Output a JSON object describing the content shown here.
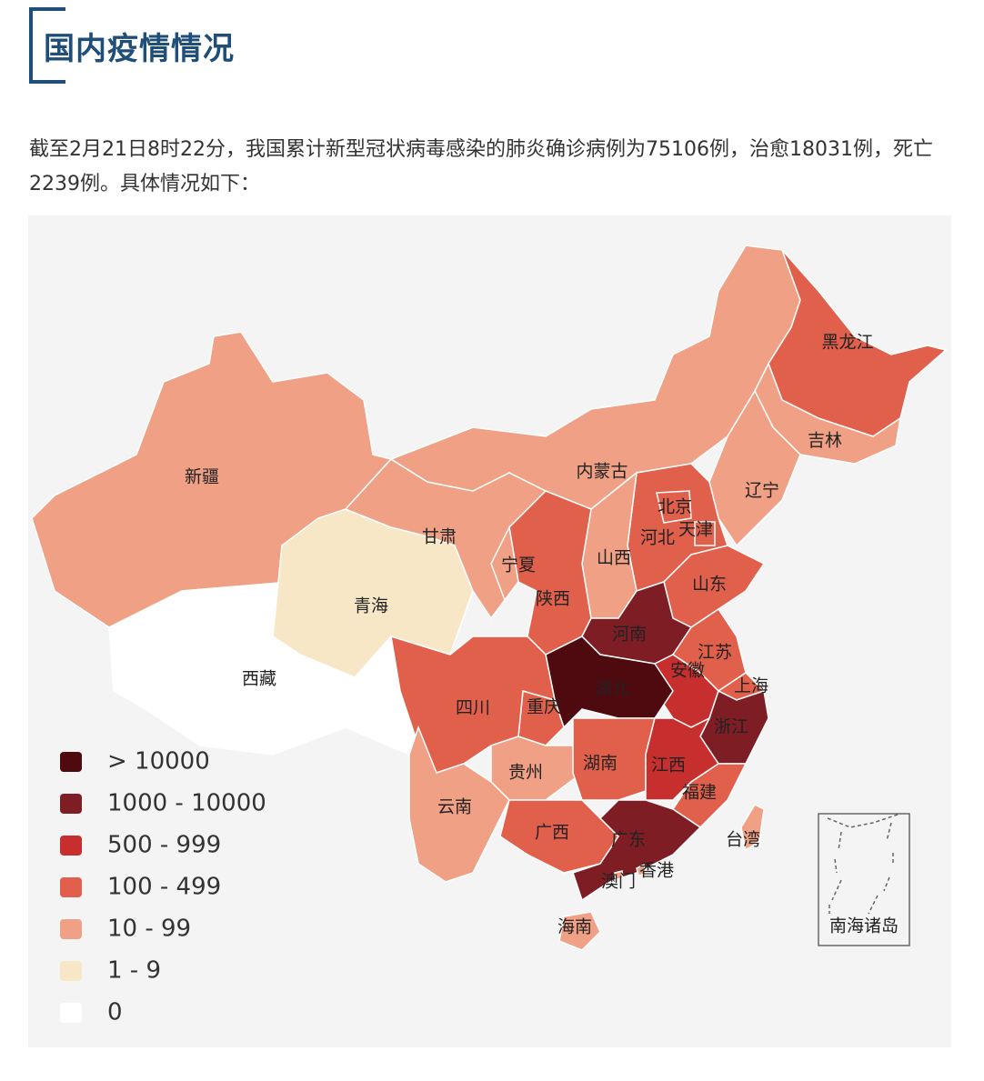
{
  "header": {
    "title": "国内疫情情况"
  },
  "summary": "截至2月21日8时22分，我国累计新型冠状病毒感染的肺炎确诊病例为75106例，治愈18031例，死亡2239例。具体情况如下：",
  "map": {
    "regions": [
      {
        "name": "新疆",
        "level": 4
      },
      {
        "name": "西藏",
        "level": 6
      },
      {
        "name": "青海",
        "level": 5
      },
      {
        "name": "甘肃",
        "level": 4
      },
      {
        "name": "内蒙古",
        "level": 4
      },
      {
        "name": "黑龙江",
        "level": 3
      },
      {
        "name": "吉林",
        "level": 4
      },
      {
        "name": "辽宁",
        "level": 4
      },
      {
        "name": "河北",
        "level": 3
      },
      {
        "name": "北京",
        "level": 3
      },
      {
        "name": "天津",
        "level": 3
      },
      {
        "name": "山西",
        "level": 4
      },
      {
        "name": "陕西",
        "level": 3
      },
      {
        "name": "宁夏",
        "level": 4
      },
      {
        "name": "山东",
        "level": 3
      },
      {
        "name": "河南",
        "level": 1
      },
      {
        "name": "江苏",
        "level": 3
      },
      {
        "name": "安徽",
        "level": 2
      },
      {
        "name": "上海",
        "level": 3
      },
      {
        "name": "浙江",
        "level": 1
      },
      {
        "name": "湖北",
        "level": 0
      },
      {
        "name": "重庆",
        "level": 3
      },
      {
        "name": "四川",
        "level": 3
      },
      {
        "name": "贵州",
        "level": 4
      },
      {
        "name": "云南",
        "level": 4
      },
      {
        "name": "湖南",
        "level": 3
      },
      {
        "name": "江西",
        "level": 2
      },
      {
        "name": "福建",
        "level": 3
      },
      {
        "name": "广西",
        "level": 3
      },
      {
        "name": "广东",
        "level": 1
      },
      {
        "name": "海南",
        "level": 4
      },
      {
        "name": "台湾",
        "level": 4
      },
      {
        "name": "香港",
        "level": 4
      },
      {
        "name": "澳门",
        "level": 4
      }
    ],
    "inset_label": "南海诸岛",
    "legend": [
      {
        "label": "> 10000",
        "color": "#4f0a10"
      },
      {
        "label": "1000 - 10000",
        "color": "#7f1d24"
      },
      {
        "label": "500 - 999",
        "color": "#c62f2d"
      },
      {
        "label": "100 - 499",
        "color": "#e0604c"
      },
      {
        "label": "10 - 99",
        "color": "#f0a084"
      },
      {
        "label": "1 - 9",
        "color": "#f8e7c6"
      },
      {
        "label": "0",
        "color": "#ffffff"
      }
    ]
  }
}
